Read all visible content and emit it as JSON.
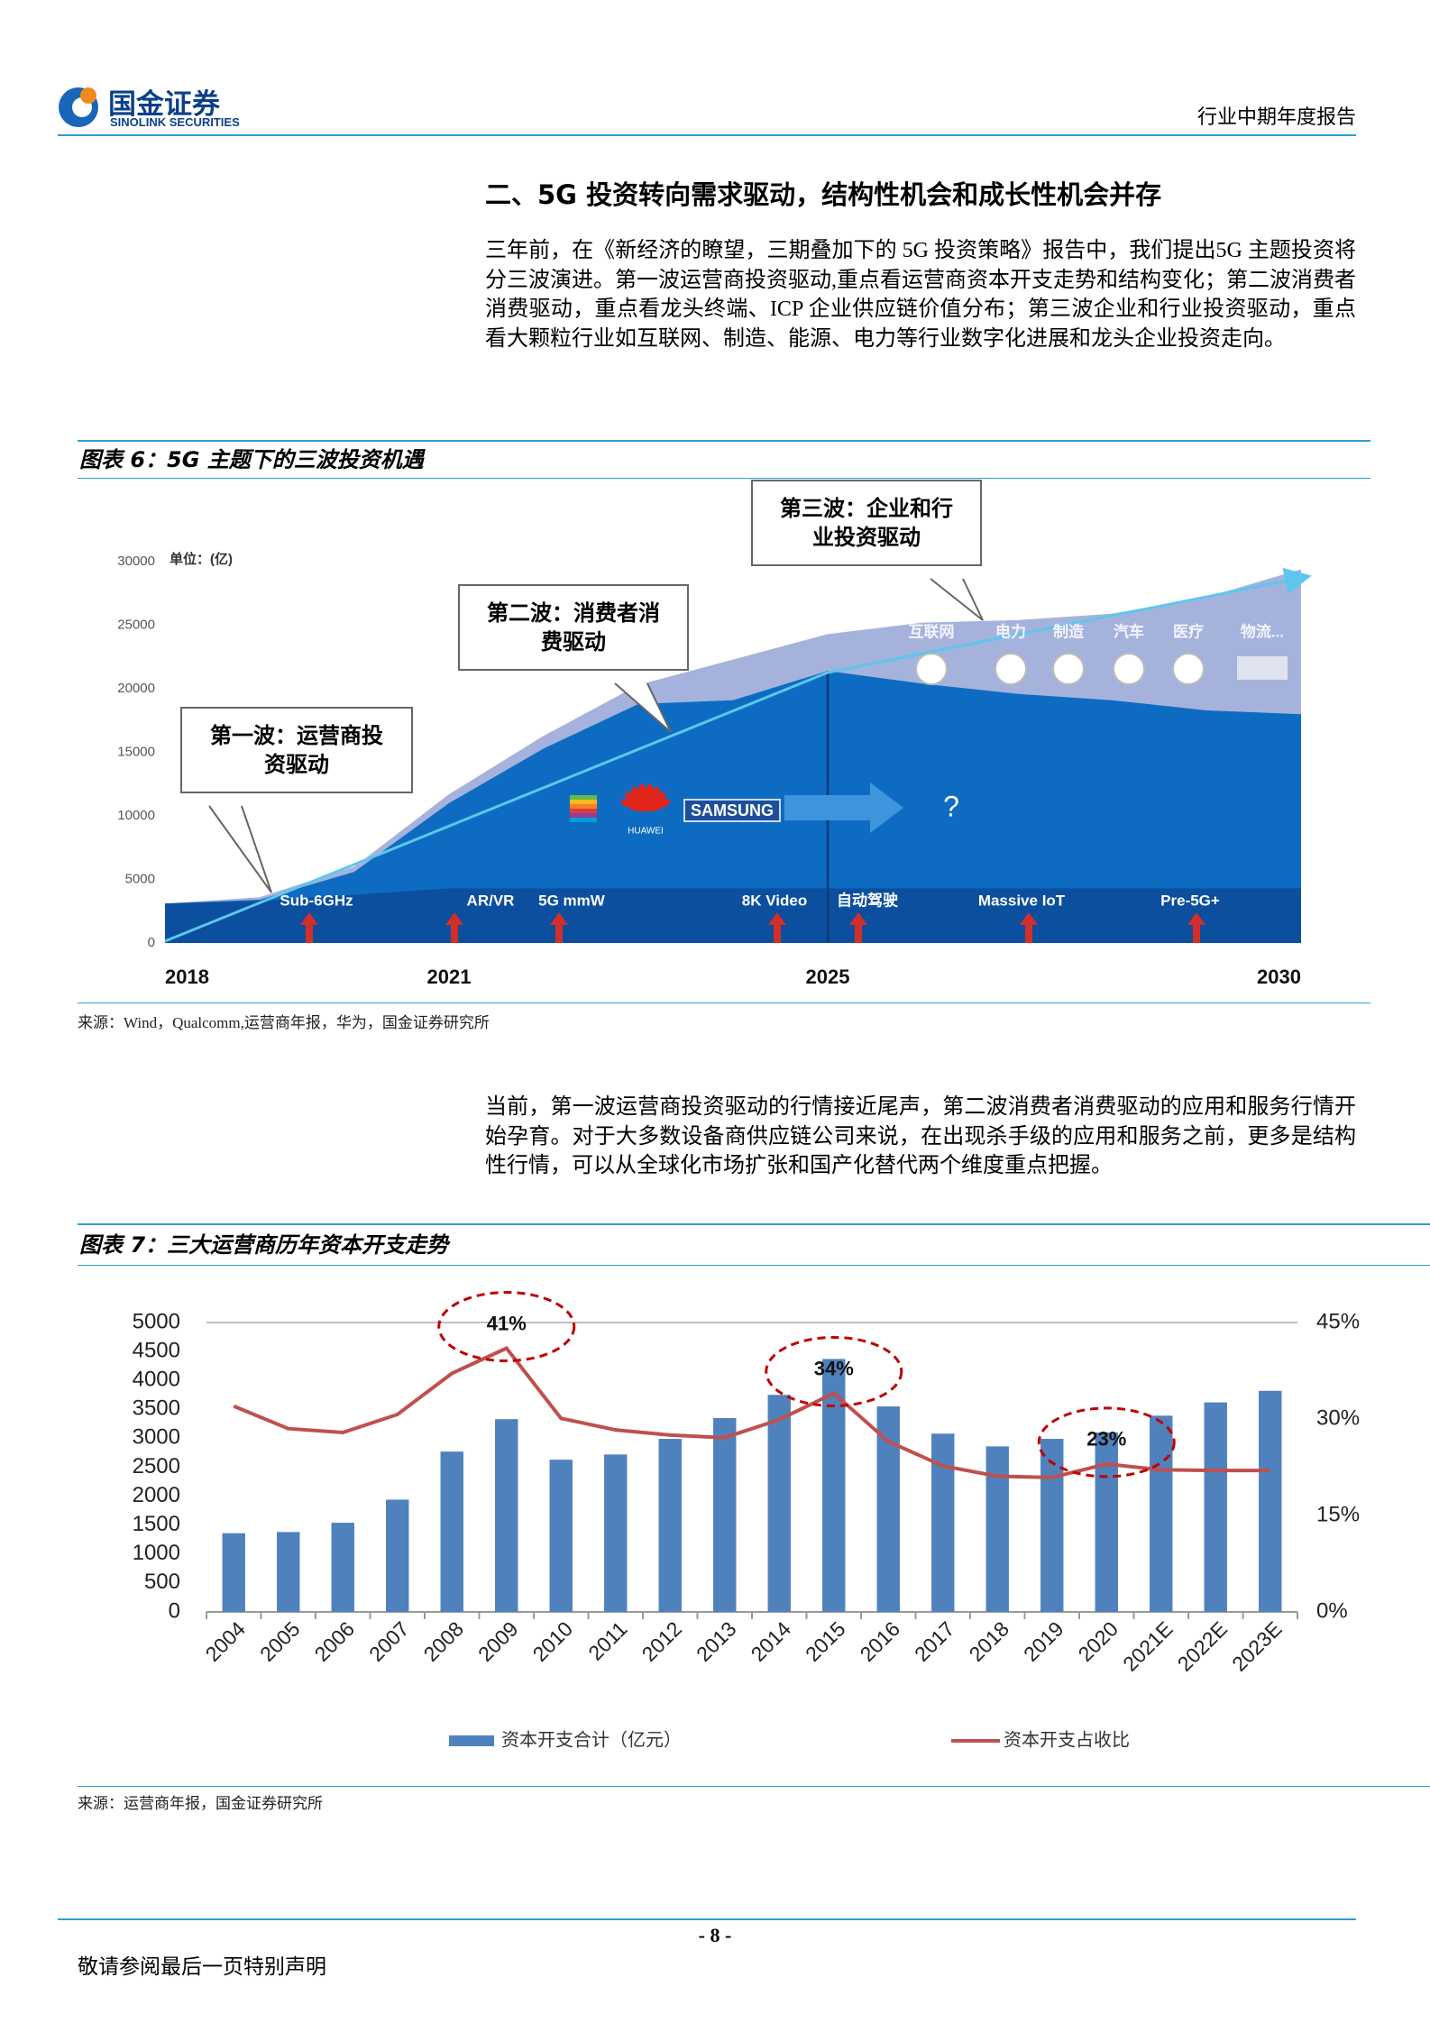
{
  "header": {
    "company_cn": "国金证券",
    "company_en": "SINOLINK SECURITIES",
    "report_type": "行业中期年度报告"
  },
  "section_title": "二、5G 投资转向需求驱动，结构性机会和成长性机会并存",
  "paragraphs": [
    "三年前，在《新经济的瞭望，三期叠加下的 5G 投资策略》报告中，我们提出5G 主题投资将分三波演进。第一波运营商投资驱动,重点看运营商资本开支走势和结构变化；第二波消费者消费驱动，重点看龙头终端、ICP 企业供应链价值分布；第三波企业和行业投资驱动，重点看大颗粒行业如互联网、制造、能源、电力等行业数字化进展和龙头企业投资走向。",
    "当前，第一波运营商投资驱动的行情接近尾声，第二波消费者消费驱动的应用和服务行情开始孕育。对于大多数设备商供应链公司来说，在出现杀手级的应用和服务之前，更多是结构性行情，可以从全球化市场扩张和国产化替代两个维度重点把握。"
  ],
  "chart_data": [
    {
      "type": "area",
      "title": "图表 6：5G 主题下的三波投资机遇",
      "source": "来源：Wind，Qualcomm,运营商年报，华为，国金证券研究所",
      "unit_label": "单位：(亿)",
      "x": [
        2018,
        2019,
        2020,
        2021,
        2022,
        2023,
        2024,
        2025,
        2026,
        2027,
        2028,
        2029,
        2030
      ],
      "xlim": [
        2018,
        2030
      ],
      "xticks": [
        2018,
        2021,
        2025,
        2030
      ],
      "ylim": [
        0,
        30000
      ],
      "yticks": [
        0,
        5000,
        10000,
        15000,
        20000,
        25000,
        30000
      ],
      "series": [
        {
          "color": "#a5b3dc",
          "values": [
            3100,
            3600,
            6000,
            11700,
            16300,
            20300,
            22300,
            24300,
            25200,
            25400,
            25900,
            27200,
            29400
          ]
        },
        {
          "color": "#0d6cc2",
          "values": [
            3100,
            3400,
            5600,
            11000,
            15300,
            18800,
            19100,
            21400,
            20400,
            19600,
            19100,
            18300,
            18000
          ]
        },
        {
          "color": "#0b4f9e",
          "values": [
            3100,
            3300,
            3800,
            4300,
            4300,
            4300,
            4300,
            4300,
            4300,
            4300,
            4300,
            4300,
            4300
          ]
        }
      ],
      "callouts": [
        "第一波：运营商投资驱动",
        "第二波：消费者消费驱动",
        "第三波：企业和行业投资驱动"
      ],
      "milestones": [
        "Sub-6GHz",
        "AR/VR",
        "5G mmW",
        "8K Video",
        "自动驾驶",
        "Massive IoT",
        "Pre-5G+"
      ],
      "industries": [
        "互联网",
        "电力",
        "制造",
        "汽车",
        "医疗",
        "物流..."
      ],
      "brands": [
        "SAMSUNG",
        "HUAWEI"
      ],
      "question": "?"
    },
    {
      "type": "combo",
      "title": "图表 7：三大运营商历年资本开支走势",
      "source": "来源：运营商年报，国金证券研究所",
      "categories": [
        "2004",
        "2005",
        "2006",
        "2007",
        "2008",
        "2009",
        "2010",
        "2011",
        "2012",
        "2013",
        "2014",
        "2015",
        "2016",
        "2017",
        "2018",
        "2019",
        "2020",
        "2021E",
        "2022E",
        "2023E"
      ],
      "series": [
        {
          "name": "资本开支合计（亿元）",
          "type": "bar",
          "color": "#4f81bd",
          "values": [
            1360,
            1380,
            1540,
            1940,
            2770,
            3330,
            2630,
            2720,
            2990,
            3350,
            3750,
            4370,
            3550,
            3080,
            2860,
            2990,
            3100,
            3390,
            3620,
            3820
          ]
        },
        {
          "name": "资本开支占收比",
          "type": "line",
          "axis": "y2",
          "color": "#c0504d",
          "values": [
            32,
            28.5,
            27.9,
            30.7,
            37.1,
            41,
            30.1,
            28.3,
            27.5,
            27.1,
            29.9,
            34,
            26.5,
            22.7,
            21.1,
            20.9,
            23,
            22.1,
            22,
            22
          ],
          "value_labels": [
            null,
            null,
            null,
            null,
            null,
            "41%",
            null,
            null,
            null,
            null,
            null,
            "34%",
            null,
            null,
            null,
            null,
            "23%",
            null,
            null,
            null
          ]
        }
      ],
      "ylim": [
        0,
        5000
      ],
      "yticks": [
        0,
        500,
        1000,
        1500,
        2000,
        2500,
        3000,
        3500,
        4000,
        4500,
        5000
      ],
      "y2lim": [
        0,
        45
      ],
      "y2ticks": [
        {
          "value": 0,
          "label": "0%"
        },
        {
          "value": 15,
          "label": "15%"
        },
        {
          "value": 30,
          "label": "30%"
        },
        {
          "value": 45,
          "label": "45%"
        }
      ],
      "grid": false,
      "legend": "bottom"
    }
  ],
  "footer": {
    "page": "- 8 -",
    "disclaimer": "敬请参阅最后一页特别声明"
  }
}
